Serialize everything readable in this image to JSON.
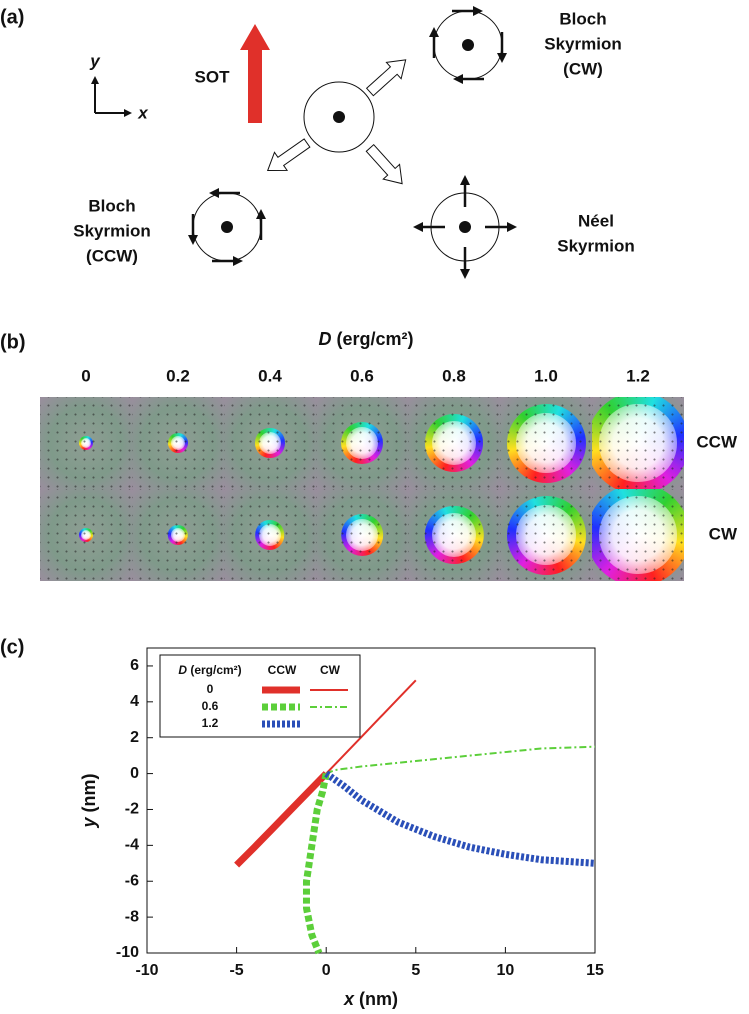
{
  "panel_a": {
    "label": "(a)",
    "axis_y": "y",
    "axis_x": "x",
    "force": "SOT",
    "bloch_cw": [
      "Bloch",
      "Skyrmion",
      "(CW)"
    ],
    "bloch_ccw": [
      "Bloch",
      "Skyrmion",
      "(CCW)"
    ],
    "neel": [
      "Néel",
      "Skyrmion"
    ]
  },
  "panel_b": {
    "label": "(b)",
    "header": {
      "symbol": "D",
      "unit": "(erg/cm²)"
    },
    "columns": [
      "0",
      "0.2",
      "0.4",
      "0.6",
      "0.8",
      "1.0",
      "1.2"
    ],
    "rows": [
      "CCW",
      "CW"
    ]
  },
  "chart_data": {
    "type": "line",
    "panel_label": "(c)",
    "xlabel": {
      "symbol": "x",
      "unit": "(nm)"
    },
    "ylabel": {
      "symbol": "y",
      "unit": "(nm)"
    },
    "xlim": [
      -10,
      15
    ],
    "ylim": [
      -10,
      7
    ],
    "xticks": [
      -10,
      -5,
      0,
      5,
      10,
      15
    ],
    "yticks": [
      -10,
      -8,
      -6,
      -4,
      -2,
      0,
      2,
      4,
      6
    ],
    "legend": {
      "title_symbol": "D",
      "title_unit": "(erg/cm²)",
      "columns": [
        "CCW",
        "CW"
      ],
      "position": "upper left"
    },
    "series": [
      {
        "name": "0",
        "chirality": "CCW",
        "color": "#e0302a",
        "dash": "solid",
        "x": [
          0,
          -1,
          -2,
          -3,
          -4,
          -5
        ],
        "y": [
          0,
          -1.02,
          -2.05,
          -3.08,
          -4.1,
          -5.1
        ]
      },
      {
        "name": "0",
        "chirality": "CW",
        "color": "#e0302a",
        "dash": "solid",
        "x": [
          0,
          1,
          2,
          3,
          4,
          5
        ],
        "y": [
          0,
          1.04,
          2.08,
          3.12,
          4.16,
          5.2
        ]
      },
      {
        "name": "0.6",
        "chirality": "CCW",
        "color": "#5ccf3a",
        "dash": "dashed",
        "x": [
          0,
          -0.2,
          -0.5,
          -0.8,
          -1.1,
          -1.1,
          -0.8,
          -0.4
        ],
        "y": [
          0,
          -1,
          -2,
          -4,
          -6,
          -7.5,
          -9,
          -10
        ]
      },
      {
        "name": "0.6",
        "chirality": "CW",
        "color": "#5ccf3a",
        "dash": "dashdot",
        "x": [
          0,
          0.5,
          2,
          5,
          8,
          10,
          12,
          15
        ],
        "y": [
          0,
          0.2,
          0.4,
          0.7,
          1.0,
          1.2,
          1.4,
          1.5
        ]
      },
      {
        "name": "1.2",
        "chirality": "CCW",
        "color": "#2a4fb8",
        "dash": "dotted",
        "x": [
          0,
          1,
          2,
          4,
          6,
          8,
          10,
          12,
          15
        ],
        "y": [
          0,
          -0.7,
          -1.5,
          -2.7,
          -3.5,
          -4.1,
          -4.5,
          -4.8,
          -5.0
        ]
      }
    ]
  }
}
